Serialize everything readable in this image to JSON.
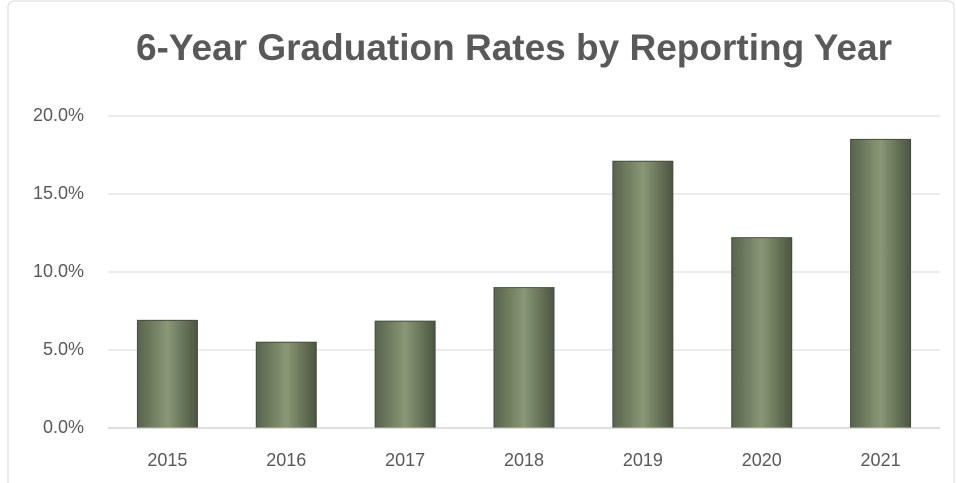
{
  "chart_data": {
    "type": "bar",
    "title": "6-Year Graduation Rates by Reporting Year",
    "categories": [
      "2015",
      "2016",
      "2017",
      "2018",
      "2019",
      "2020",
      "2021"
    ],
    "values": [
      6.9,
      5.5,
      6.85,
      9.0,
      17.1,
      12.2,
      18.5
    ],
    "color": "#7e8d6c",
    "ylim": [
      0,
      20
    ],
    "yticks": [
      {
        "value": 0,
        "label": "0.0%"
      },
      {
        "value": 5,
        "label": "5.0%"
      },
      {
        "value": 10,
        "label": "10.0%"
      },
      {
        "value": 15,
        "label": "15.0%"
      },
      {
        "value": 20,
        "label": "20.0%"
      }
    ],
    "grid": true
  }
}
